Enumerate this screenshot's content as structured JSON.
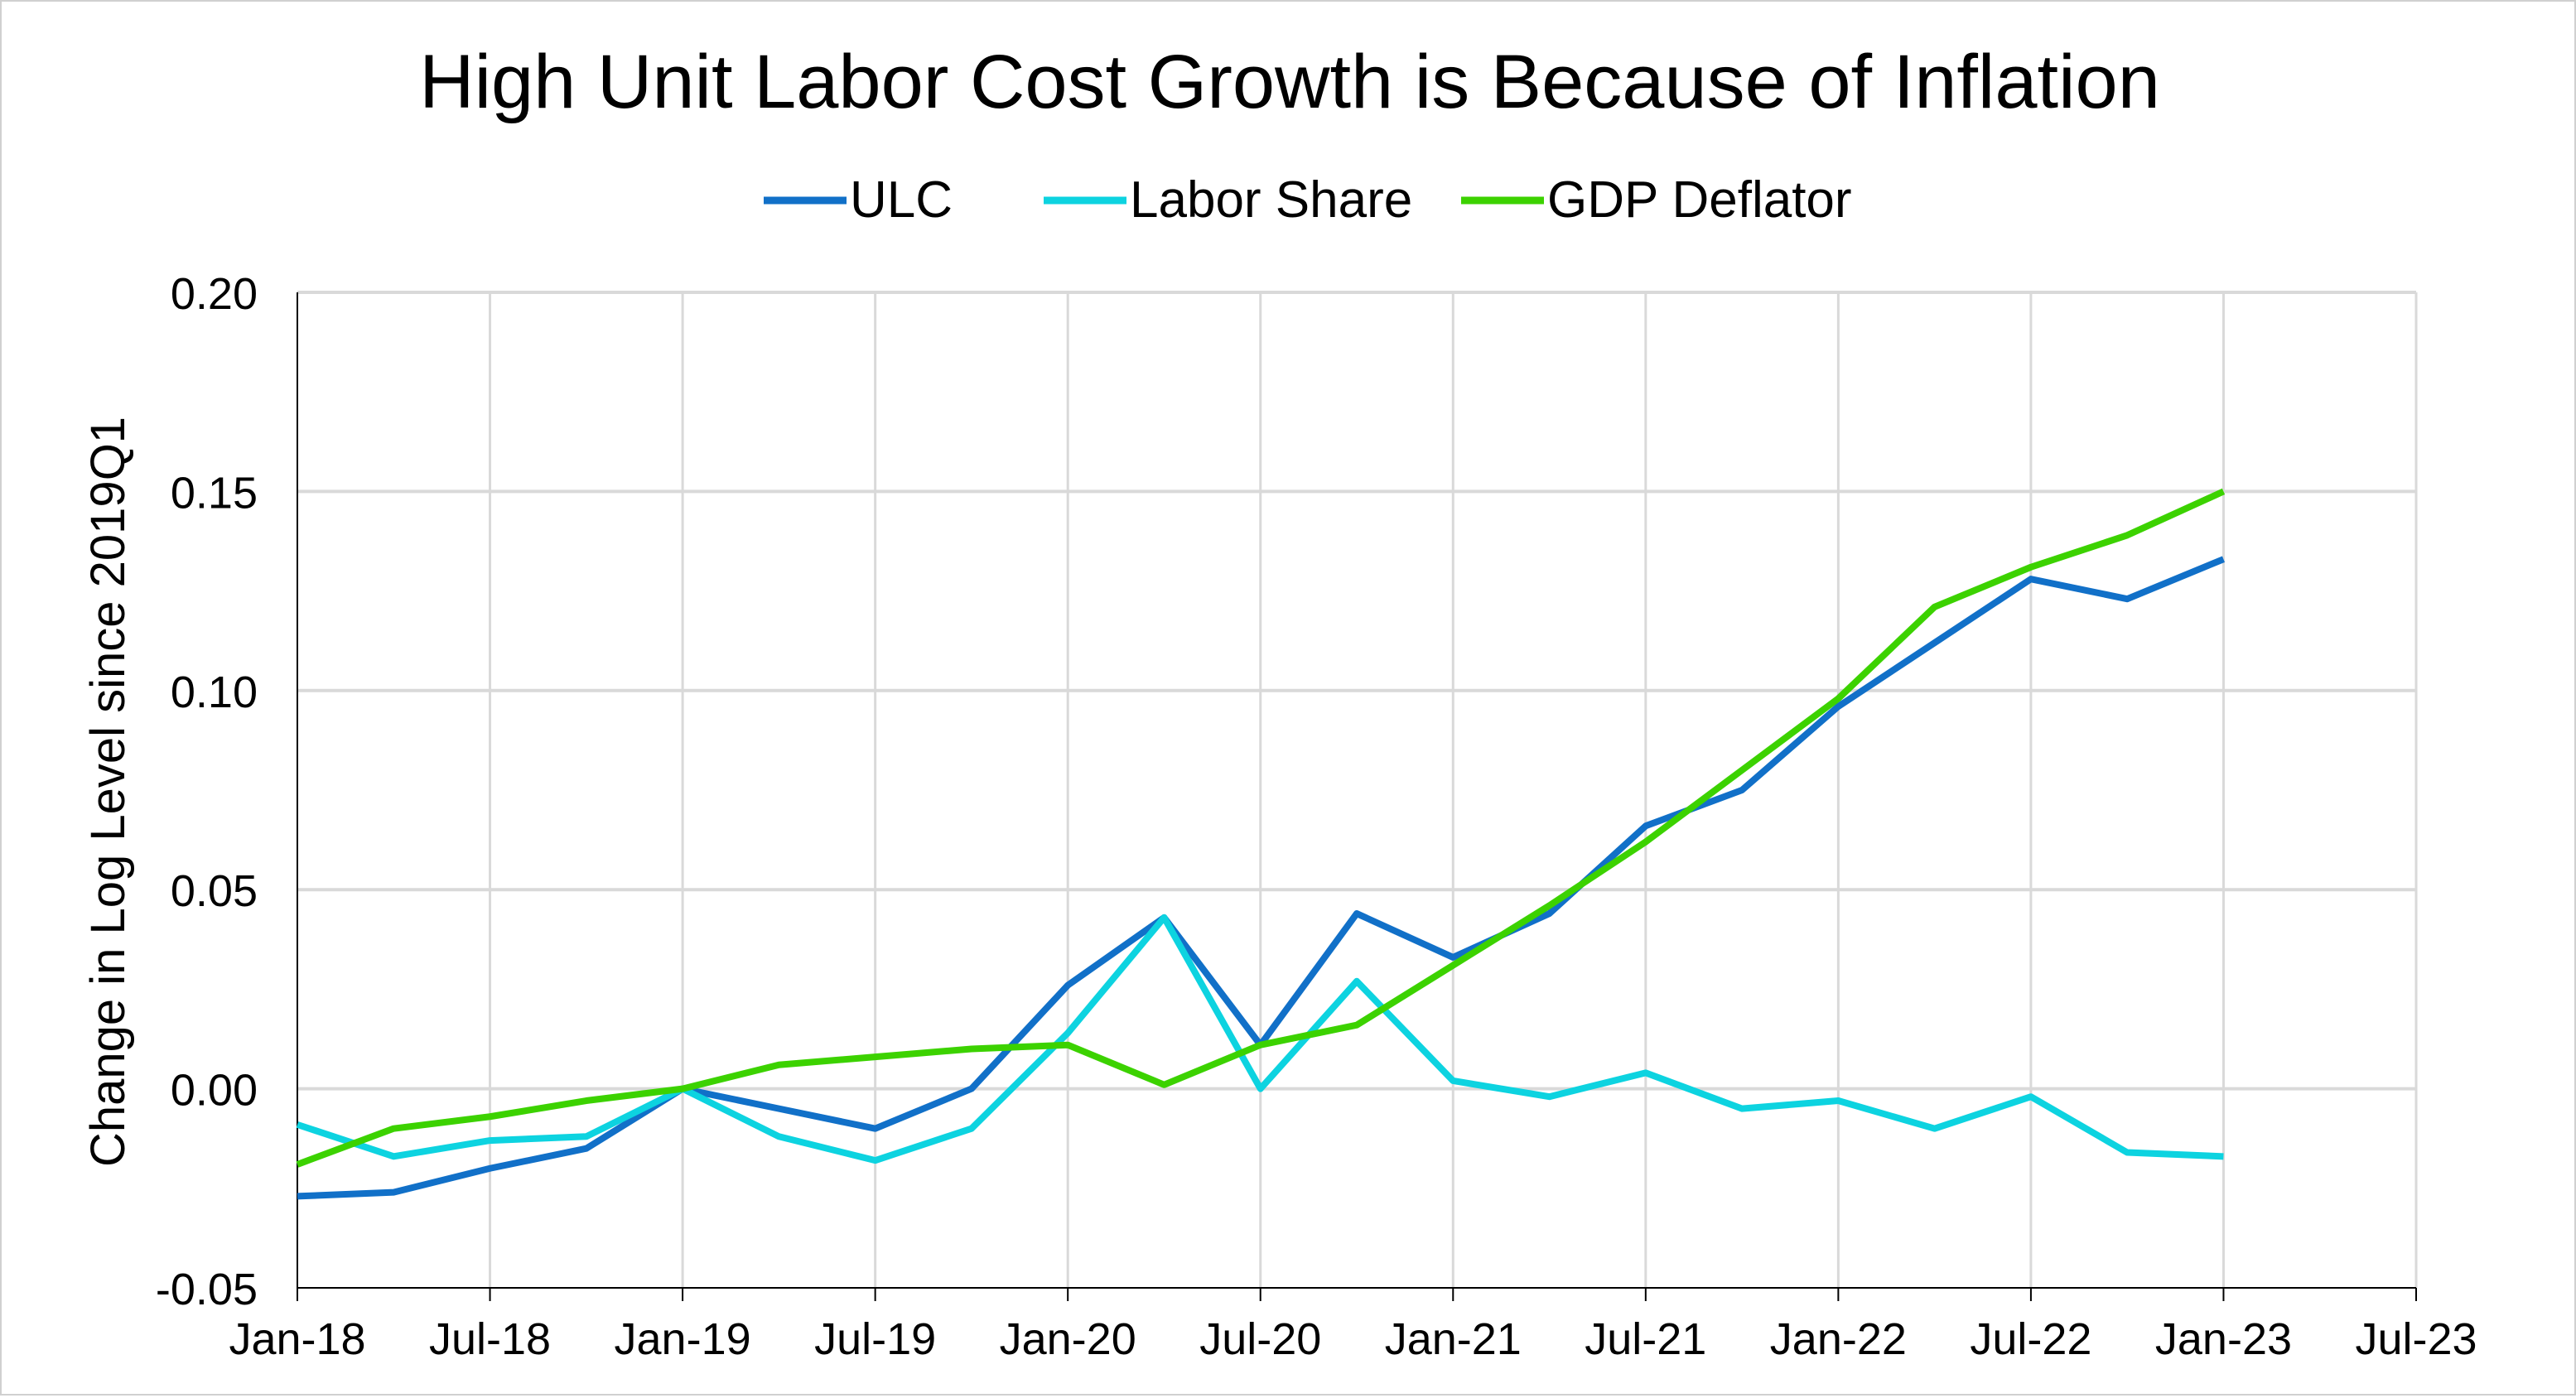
{
  "chart_data": {
    "type": "line",
    "title": "High Unit Labor Cost Growth is Because of Inflation",
    "xlabel": "",
    "ylabel": "Change in Log Level since 2019Q1",
    "ylim": [
      -0.05,
      0.2
    ],
    "yticks": [
      "0.20",
      "0.15",
      "0.10",
      "0.05",
      "0.00",
      "-0.05"
    ],
    "ytick_values": [
      0.2,
      0.15,
      0.1,
      0.05,
      0.0,
      -0.05
    ],
    "xticks": [
      "Jan-18",
      "Jul-18",
      "Jan-19",
      "Jul-19",
      "Jan-20",
      "Jul-20",
      "Jan-21",
      "Jul-21",
      "Jan-22",
      "Jul-22",
      "Jan-23",
      "Jul-23"
    ],
    "x": [
      "2018Q1",
      "2018Q2",
      "2018Q3",
      "2018Q4",
      "2019Q1",
      "2019Q2",
      "2019Q3",
      "2019Q4",
      "2020Q1",
      "2020Q2",
      "2020Q3",
      "2020Q4",
      "2021Q1",
      "2021Q2",
      "2021Q3",
      "2021Q4",
      "2022Q1",
      "2022Q2",
      "2022Q3",
      "2022Q4",
      "2023Q1"
    ],
    "grid": true,
    "legend": "top",
    "series": [
      {
        "name": "ULC",
        "color": "#1170C8",
        "values": [
          -0.027,
          -0.026,
          -0.02,
          -0.015,
          0.0,
          -0.005,
          -0.01,
          0.0,
          0.026,
          0.043,
          0.011,
          0.044,
          0.033,
          0.044,
          0.066,
          0.075,
          0.096,
          0.112,
          0.128,
          0.123,
          0.133
        ]
      },
      {
        "name": "Labor Share",
        "color": "#0DD3E0",
        "values": [
          -0.009,
          -0.017,
          -0.013,
          -0.012,
          0.0,
          -0.012,
          -0.018,
          -0.01,
          0.014,
          0.043,
          0.0,
          0.027,
          0.002,
          -0.002,
          0.004,
          -0.005,
          -0.003,
          -0.01,
          -0.002,
          -0.016,
          -0.017
        ]
      },
      {
        "name": "GDP Deflator",
        "color": "#3CD200",
        "values": [
          -0.019,
          -0.01,
          -0.007,
          -0.003,
          0.0,
          0.006,
          0.008,
          0.01,
          0.011,
          0.001,
          0.011,
          0.016,
          0.031,
          0.046,
          0.062,
          0.08,
          0.098,
          0.121,
          0.131,
          0.139,
          0.15
        ]
      }
    ]
  }
}
